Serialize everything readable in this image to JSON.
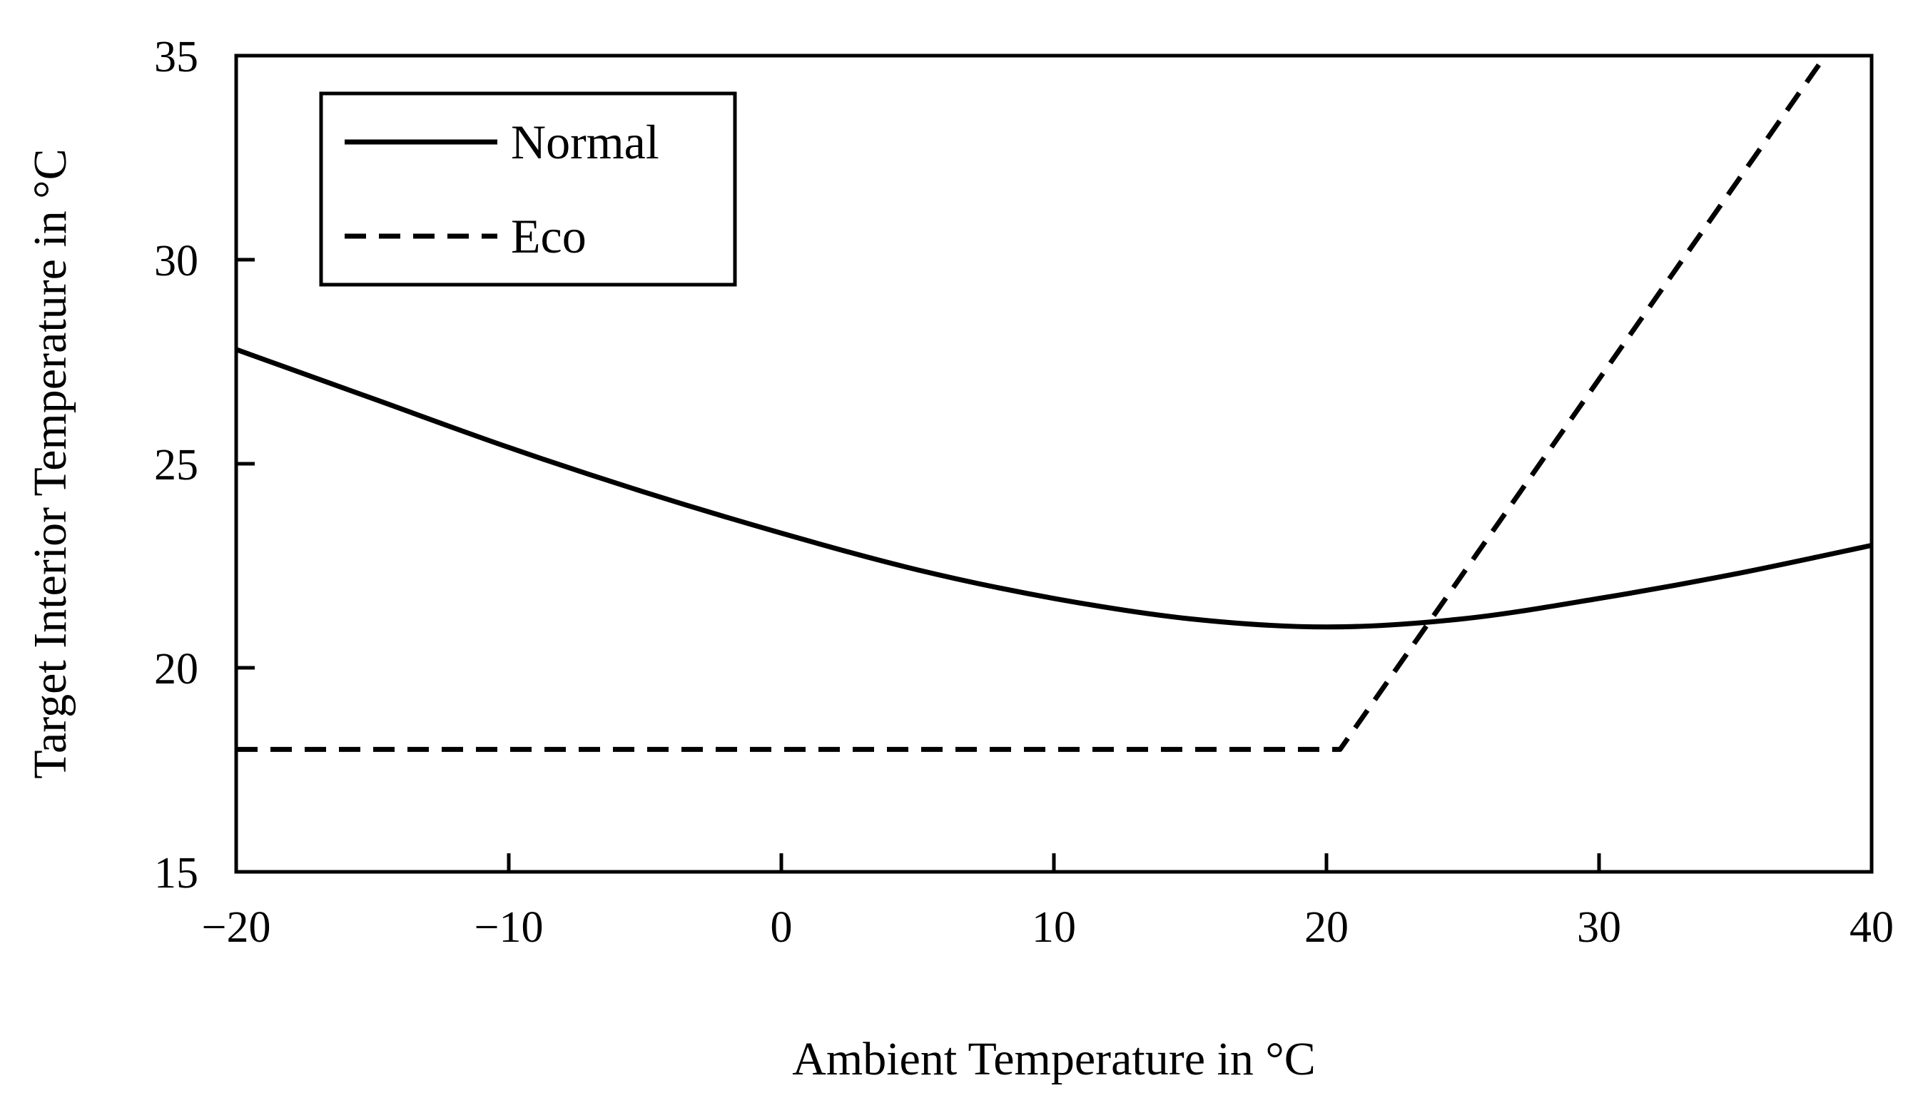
{
  "chart_data": {
    "type": "line",
    "title": "",
    "xlabel": "Ambient Temperature in °C",
    "ylabel": "Target Interior Temperature in °C",
    "xlim": [
      -20,
      40
    ],
    "ylim": [
      15,
      35
    ],
    "xticks": [
      -20,
      -10,
      0,
      10,
      20,
      30,
      40
    ],
    "yticks": [
      15,
      20,
      25,
      30,
      35
    ],
    "xtick_labels": [
      "−20",
      "−10",
      "0",
      "10",
      "20",
      "30",
      "40"
    ],
    "ytick_labels": [
      "15",
      "20",
      "25",
      "30",
      "35"
    ],
    "grid": false,
    "legend": {
      "position": "top-left"
    },
    "series": [
      {
        "name": "Normal",
        "style": "solid",
        "color": "#000000",
        "x": [
          -20,
          -15,
          -10,
          -5,
          0,
          5,
          10,
          15,
          20,
          25,
          30,
          35,
          40
        ],
        "y": [
          27.8,
          26.6,
          25.4,
          24.3,
          23.3,
          22.4,
          21.7,
          21.2,
          21.0,
          21.2,
          21.7,
          22.3,
          23.0
        ]
      },
      {
        "name": "Eco",
        "style": "dashed",
        "color": "#000000",
        "x": [
          -20,
          20.5,
          38.3
        ],
        "y": [
          18.0,
          18.0,
          35.0
        ]
      }
    ]
  }
}
